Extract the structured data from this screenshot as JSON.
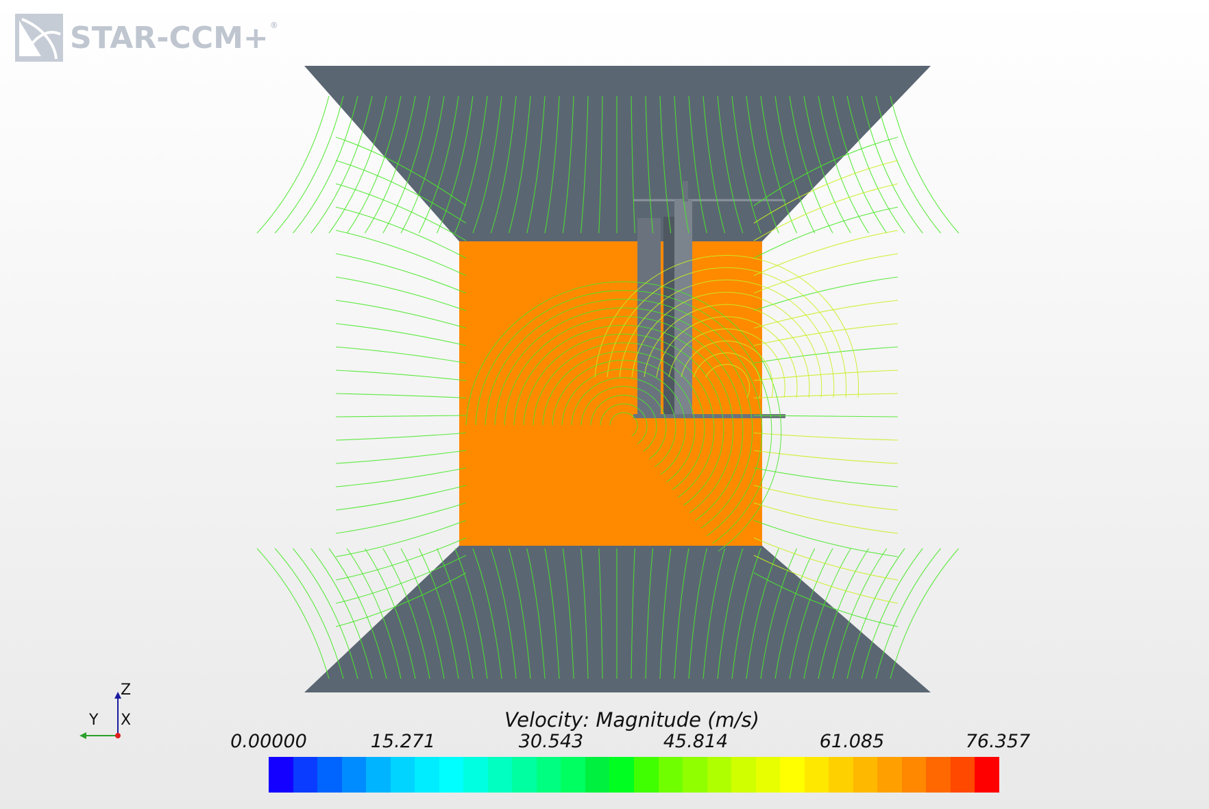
{
  "logo": {
    "text": "STAR-CCM+",
    "mark": "®"
  },
  "axes_triad": {
    "z_label": "Z",
    "y_label": "Y",
    "x_label": "X"
  },
  "legend": {
    "title": "Velocity: Magnitude (m/s)",
    "ticks": [
      "0.00000",
      "15.271",
      "30.543",
      "45.814",
      "61.085",
      "76.357"
    ],
    "colors": [
      "#1400ff",
      "#0a3cff",
      "#0064ff",
      "#008cff",
      "#00b4ff",
      "#00d4ff",
      "#00ecff",
      "#00ffff",
      "#00ffe0",
      "#00ffc0",
      "#00ffa0",
      "#00ff80",
      "#00ff60",
      "#00f040",
      "#00ff20",
      "#40ff00",
      "#70ff00",
      "#90ff00",
      "#b0ff00",
      "#d0ff00",
      "#e8ff00",
      "#ffff00",
      "#ffe800",
      "#ffd000",
      "#ffb800",
      "#ffa000",
      "#ff8800",
      "#ff6800",
      "#ff4800",
      "#ff0000"
    ]
  },
  "scene_colors": {
    "duct": "#5b6673",
    "box": "#ff8a00",
    "pillar": "#6a737d",
    "streamline": "#4ae82a",
    "streamline_yellow": "#c8f020"
  }
}
